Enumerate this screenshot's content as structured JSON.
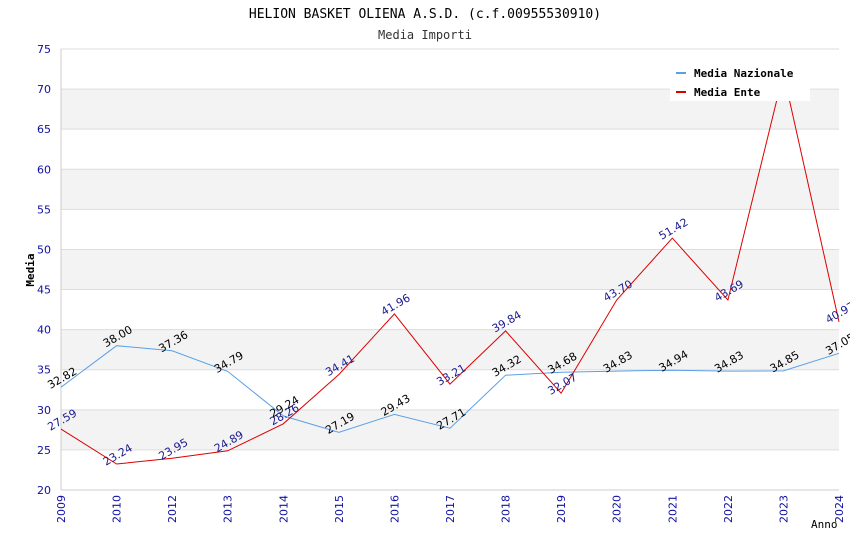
{
  "chart_data": {
    "type": "line",
    "title": "HELION BASKET OLIENA A.S.D. (c.f.00955530910)",
    "subtitle": "Media Importi",
    "xlabel": "Anno",
    "ylabel": "Media",
    "ylim": [
      20,
      75
    ],
    "ystep": 5,
    "grid": true,
    "legend_position": "top-right",
    "categories": [
      "2009",
      "2010",
      "2012",
      "2013",
      "2014",
      "2015",
      "2016",
      "2017",
      "2018",
      "2019",
      "2020",
      "2021",
      "2022",
      "2023",
      "2024"
    ],
    "series": [
      {
        "name": "Media Nazionale",
        "color": "#5aa0e6",
        "label_color": "#000000",
        "values": [
          32.82,
          38.0,
          37.36,
          34.79,
          29.24,
          27.19,
          29.43,
          27.71,
          34.32,
          34.68,
          34.83,
          34.94,
          34.83,
          34.85,
          37.05
        ],
        "labels": [
          "32.82",
          "38.00",
          "37.36",
          "34.79",
          "29.24",
          "27.19",
          "29.43",
          "27.71",
          "34.32",
          "34.68",
          "34.83",
          "34.94",
          "34.83",
          "34.85",
          "37.05"
        ]
      },
      {
        "name": "Media Ente",
        "color": "#dd0000",
        "label_color": "#1a1a8c",
        "values": [
          27.59,
          23.24,
          23.95,
          24.89,
          28.26,
          34.41,
          41.96,
          33.21,
          39.84,
          32.07,
          43.7,
          51.42,
          43.69,
          72.0,
          40.97
        ],
        "labels": [
          "27.59",
          "23.24",
          "23.95",
          "24.89",
          "28.26",
          "34.41",
          "41.96",
          "33.21",
          "39.84",
          "32.07",
          "43.70",
          "51.42",
          "43.69",
          "",
          "40.97"
        ]
      }
    ]
  }
}
